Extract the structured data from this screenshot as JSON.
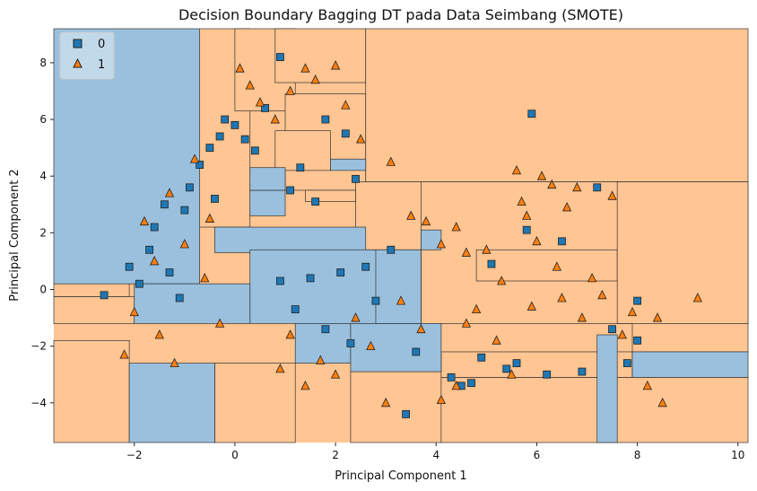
{
  "chart_data": {
    "type": "scatter",
    "title": "Decision Boundary Bagging DT pada Data Seimbang (SMOTE)",
    "xlabel": "Principal Component 1",
    "ylabel": "Principal Component 2",
    "xlim": [
      -3.6,
      10.2
    ],
    "ylim": [
      -5.4,
      9.2
    ],
    "xticks": [
      -2,
      0,
      2,
      4,
      6,
      8,
      10
    ],
    "yticks": [
      -4,
      -2,
      0,
      2,
      4,
      6,
      8
    ],
    "grid": false,
    "legend_position": "top-left",
    "background_class": "1",
    "colors": {
      "class_0": "#1f77b4",
      "class_1": "#ff7f0e",
      "region_0": "#9ac0dd",
      "region_1": "#ffc592"
    },
    "series": [
      {
        "name": "0",
        "marker": "square",
        "points": [
          [
            -2.6,
            -0.2
          ],
          [
            -2.1,
            0.8
          ],
          [
            -1.9,
            0.2
          ],
          [
            -1.7,
            1.4
          ],
          [
            -1.6,
            2.2
          ],
          [
            -1.4,
            3.0
          ],
          [
            -1.3,
            0.6
          ],
          [
            -1.1,
            -0.3
          ],
          [
            -1.0,
            2.8
          ],
          [
            -0.9,
            3.6
          ],
          [
            -0.7,
            4.4
          ],
          [
            -0.5,
            5.0
          ],
          [
            -0.4,
            3.2
          ],
          [
            -0.3,
            5.4
          ],
          [
            -0.2,
            6.0
          ],
          [
            0.0,
            5.8
          ],
          [
            0.2,
            5.3
          ],
          [
            0.4,
            4.9
          ],
          [
            0.6,
            6.4
          ],
          [
            0.9,
            8.2
          ],
          [
            1.1,
            3.5
          ],
          [
            1.3,
            4.3
          ],
          [
            1.6,
            3.1
          ],
          [
            1.8,
            6.0
          ],
          [
            2.2,
            5.5
          ],
          [
            2.4,
            3.9
          ],
          [
            0.9,
            0.3
          ],
          [
            1.2,
            -0.7
          ],
          [
            1.5,
            0.4
          ],
          [
            1.8,
            -1.4
          ],
          [
            2.1,
            0.6
          ],
          [
            2.3,
            -1.9
          ],
          [
            2.6,
            0.8
          ],
          [
            2.8,
            -0.4
          ],
          [
            3.1,
            1.4
          ],
          [
            3.4,
            -4.4
          ],
          [
            3.6,
            -2.2
          ],
          [
            4.3,
            -3.1
          ],
          [
            4.5,
            -3.4
          ],
          [
            4.7,
            -3.3
          ],
          [
            4.9,
            -2.4
          ],
          [
            5.1,
            0.9
          ],
          [
            5.4,
            -2.8
          ],
          [
            5.6,
            -2.6
          ],
          [
            5.8,
            2.1
          ],
          [
            5.9,
            6.2
          ],
          [
            6.2,
            -3.0
          ],
          [
            6.5,
            1.7
          ],
          [
            6.9,
            -2.9
          ],
          [
            7.2,
            3.6
          ],
          [
            7.5,
            -1.4
          ],
          [
            7.8,
            -2.6
          ],
          [
            8.0,
            -0.4
          ],
          [
            8.0,
            -1.8
          ]
        ]
      },
      {
        "name": "1",
        "marker": "triangle",
        "points": [
          [
            -2.2,
            -2.3
          ],
          [
            -2.0,
            -0.8
          ],
          [
            -1.8,
            2.4
          ],
          [
            -1.6,
            1.0
          ],
          [
            -1.5,
            -1.6
          ],
          [
            -1.3,
            3.4
          ],
          [
            -1.2,
            -2.6
          ],
          [
            -1.0,
            1.6
          ],
          [
            -0.8,
            4.6
          ],
          [
            -0.6,
            0.4
          ],
          [
            -0.5,
            2.5
          ],
          [
            -0.3,
            -1.2
          ],
          [
            0.1,
            7.8
          ],
          [
            0.3,
            7.2
          ],
          [
            0.5,
            6.6
          ],
          [
            0.8,
            6.0
          ],
          [
            1.1,
            7.0
          ],
          [
            1.4,
            7.8
          ],
          [
            1.6,
            7.4
          ],
          [
            2.0,
            7.9
          ],
          [
            2.2,
            6.5
          ],
          [
            2.5,
            5.3
          ],
          [
            3.1,
            4.5
          ],
          [
            3.5,
            2.6
          ],
          [
            3.8,
            2.4
          ],
          [
            4.1,
            1.6
          ],
          [
            4.4,
            2.2
          ],
          [
            4.6,
            1.3
          ],
          [
            0.9,
            -2.8
          ],
          [
            1.1,
            -1.6
          ],
          [
            1.4,
            -3.4
          ],
          [
            1.7,
            -2.5
          ],
          [
            2.0,
            -3.0
          ],
          [
            2.4,
            -1.0
          ],
          [
            2.7,
            -2.0
          ],
          [
            3.0,
            -4.0
          ],
          [
            3.3,
            -0.4
          ],
          [
            3.7,
            -1.4
          ],
          [
            4.1,
            -3.9
          ],
          [
            4.4,
            -3.4
          ],
          [
            4.6,
            -1.2
          ],
          [
            4.8,
            -0.7
          ],
          [
            5.0,
            1.4
          ],
          [
            5.2,
            -1.8
          ],
          [
            5.3,
            0.3
          ],
          [
            5.5,
            -3.0
          ],
          [
            5.6,
            4.2
          ],
          [
            5.7,
            3.1
          ],
          [
            5.8,
            2.6
          ],
          [
            5.9,
            -0.6
          ],
          [
            6.0,
            1.7
          ],
          [
            6.1,
            4.0
          ],
          [
            6.3,
            3.7
          ],
          [
            6.4,
            0.8
          ],
          [
            6.5,
            -0.3
          ],
          [
            6.6,
            2.9
          ],
          [
            6.8,
            3.6
          ],
          [
            6.9,
            -1.0
          ],
          [
            7.1,
            0.4
          ],
          [
            7.3,
            -0.2
          ],
          [
            7.5,
            3.3
          ],
          [
            7.7,
            -1.6
          ],
          [
            7.9,
            -0.8
          ],
          [
            8.2,
            -3.4
          ],
          [
            8.4,
            -1.0
          ],
          [
            8.5,
            -4.0
          ],
          [
            9.2,
            -0.3
          ]
        ]
      }
    ],
    "class_1_regions": [
      [
        -3.6,
        -5.4,
        -2.1,
        -1.8
      ],
      [
        -3.6,
        -1.2,
        -2.0,
        -0.25
      ],
      [
        -0.4,
        -5.4,
        1.2,
        -2.6
      ],
      [
        -0.7,
        2.2,
        0.3,
        9.2
      ],
      [
        0.0,
        6.3,
        1.2,
        9.2
      ],
      [
        0.8,
        7.3,
        2.6,
        9.2
      ],
      [
        1.0,
        3.5,
        2.6,
        6.9
      ],
      [
        0.8,
        4.2,
        1.9,
        5.6
      ],
      [
        1.4,
        3.1,
        2.4,
        3.5
      ],
      [
        2.3,
        -5.4,
        4.1,
        -2.9
      ],
      [
        2.4,
        1.4,
        4.1,
        3.8
      ],
      [
        2.6,
        3.8,
        10.2,
        9.2
      ],
      [
        2.6,
        -1.2,
        2.8,
        1.4
      ],
      [
        3.7,
        -1.2,
        10.2,
        3.8
      ],
      [
        4.1,
        -5.4,
        10.2,
        -3.1
      ],
      [
        4.1,
        -3.1,
        7.9,
        -2.2
      ],
      [
        4.8,
        0.3,
        7.6,
        1.4
      ],
      [
        7.6,
        -1.2,
        10.2,
        3.8
      ],
      [
        7.9,
        -2.2,
        10.2,
        -1.2
      ],
      [
        -3.6,
        -0.25,
        -2.1,
        0.2
      ]
    ],
    "class_0_regions": [
      [
        -3.6,
        0.2,
        -0.7,
        9.2
      ],
      [
        -2.1,
        -5.4,
        -0.4,
        -2.6
      ],
      [
        -0.4,
        1.3,
        2.6,
        2.2
      ],
      [
        -0.4,
        2.2,
        -0.7,
        3.1
      ],
      [
        0.3,
        2.6,
        1.0,
        3.5
      ],
      [
        0.3,
        -1.2,
        3.7,
        1.4
      ],
      [
        1.2,
        -2.6,
        2.3,
        -1.2
      ],
      [
        2.3,
        -2.9,
        4.1,
        -1.2
      ],
      [
        2.8,
        -1.2,
        3.7,
        1.4
      ],
      [
        -2.0,
        -1.2,
        0.3,
        0.2
      ],
      [
        3.7,
        1.4,
        4.1,
        2.1
      ],
      [
        7.9,
        -3.1,
        10.2,
        -2.2
      ],
      [
        1.9,
        4.2,
        2.6,
        4.6
      ],
      [
        0.3,
        3.5,
        1.0,
        4.3
      ],
      [
        7.2,
        -5.4,
        7.6,
        -1.6
      ]
    ]
  },
  "legend": {
    "items": [
      {
        "label": "0"
      },
      {
        "label": "1"
      }
    ]
  }
}
